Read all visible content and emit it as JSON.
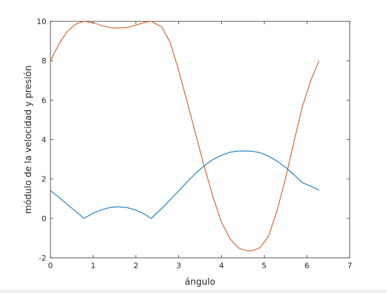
{
  "chart_data": {
    "type": "line",
    "xlabel": "ángulo",
    "ylabel": "módulo de la velocidad y presión",
    "xlim": [
      0,
      7
    ],
    "ylim": [
      -2,
      10
    ],
    "xticks": [
      "0",
      "1",
      "2",
      "3",
      "4",
      "5",
      "6",
      "7"
    ],
    "yticks": [
      "-2",
      "0",
      "2",
      "4",
      "6",
      "8",
      "10"
    ],
    "grid": false,
    "series": [
      {
        "color": "#0072BD",
        "x": [
          0,
          0.2,
          0.4,
          0.6,
          0.785,
          1.0,
          1.2,
          1.4,
          1.571,
          1.8,
          2.0,
          2.2,
          2.356,
          2.6,
          2.8,
          3.0,
          3.2,
          3.4,
          3.6,
          3.8,
          4.0,
          4.2,
          4.4,
          4.6,
          4.712,
          4.9,
          5.1,
          5.3,
          5.5,
          5.7,
          5.9,
          6.1,
          6.283
        ],
        "y": [
          1.41,
          1.07,
          0.7,
          0.34,
          0.0,
          0.27,
          0.44,
          0.56,
          0.59,
          0.55,
          0.42,
          0.22,
          0.0,
          0.5,
          0.94,
          1.4,
          1.86,
          2.3,
          2.68,
          2.99,
          3.2,
          3.36,
          3.42,
          3.42,
          3.41,
          3.34,
          3.16,
          2.91,
          2.59,
          2.21,
          1.8,
          1.63,
          1.43
        ]
      },
      {
        "color": "#D95319",
        "x": [
          0,
          0.2,
          0.4,
          0.6,
          0.785,
          1.0,
          1.2,
          1.4,
          1.571,
          1.8,
          2.0,
          2.2,
          2.356,
          2.6,
          2.8,
          3.0,
          3.2,
          3.4,
          3.6,
          3.8,
          4.0,
          4.2,
          4.4,
          4.6,
          4.712,
          4.9,
          5.1,
          5.3,
          5.5,
          5.7,
          5.9,
          6.1,
          6.283
        ],
        "y": [
          8.0,
          8.86,
          9.51,
          9.87,
          10.0,
          9.93,
          9.79,
          9.68,
          9.66,
          9.69,
          9.81,
          9.95,
          10.0,
          9.73,
          8.94,
          7.5,
          5.9,
          4.25,
          2.62,
          1.11,
          -0.19,
          -1.03,
          -1.5,
          -1.65,
          -1.64,
          -1.49,
          -0.91,
          0.39,
          2.04,
          3.93,
          5.73,
          7.06,
          8.0
        ]
      }
    ]
  }
}
